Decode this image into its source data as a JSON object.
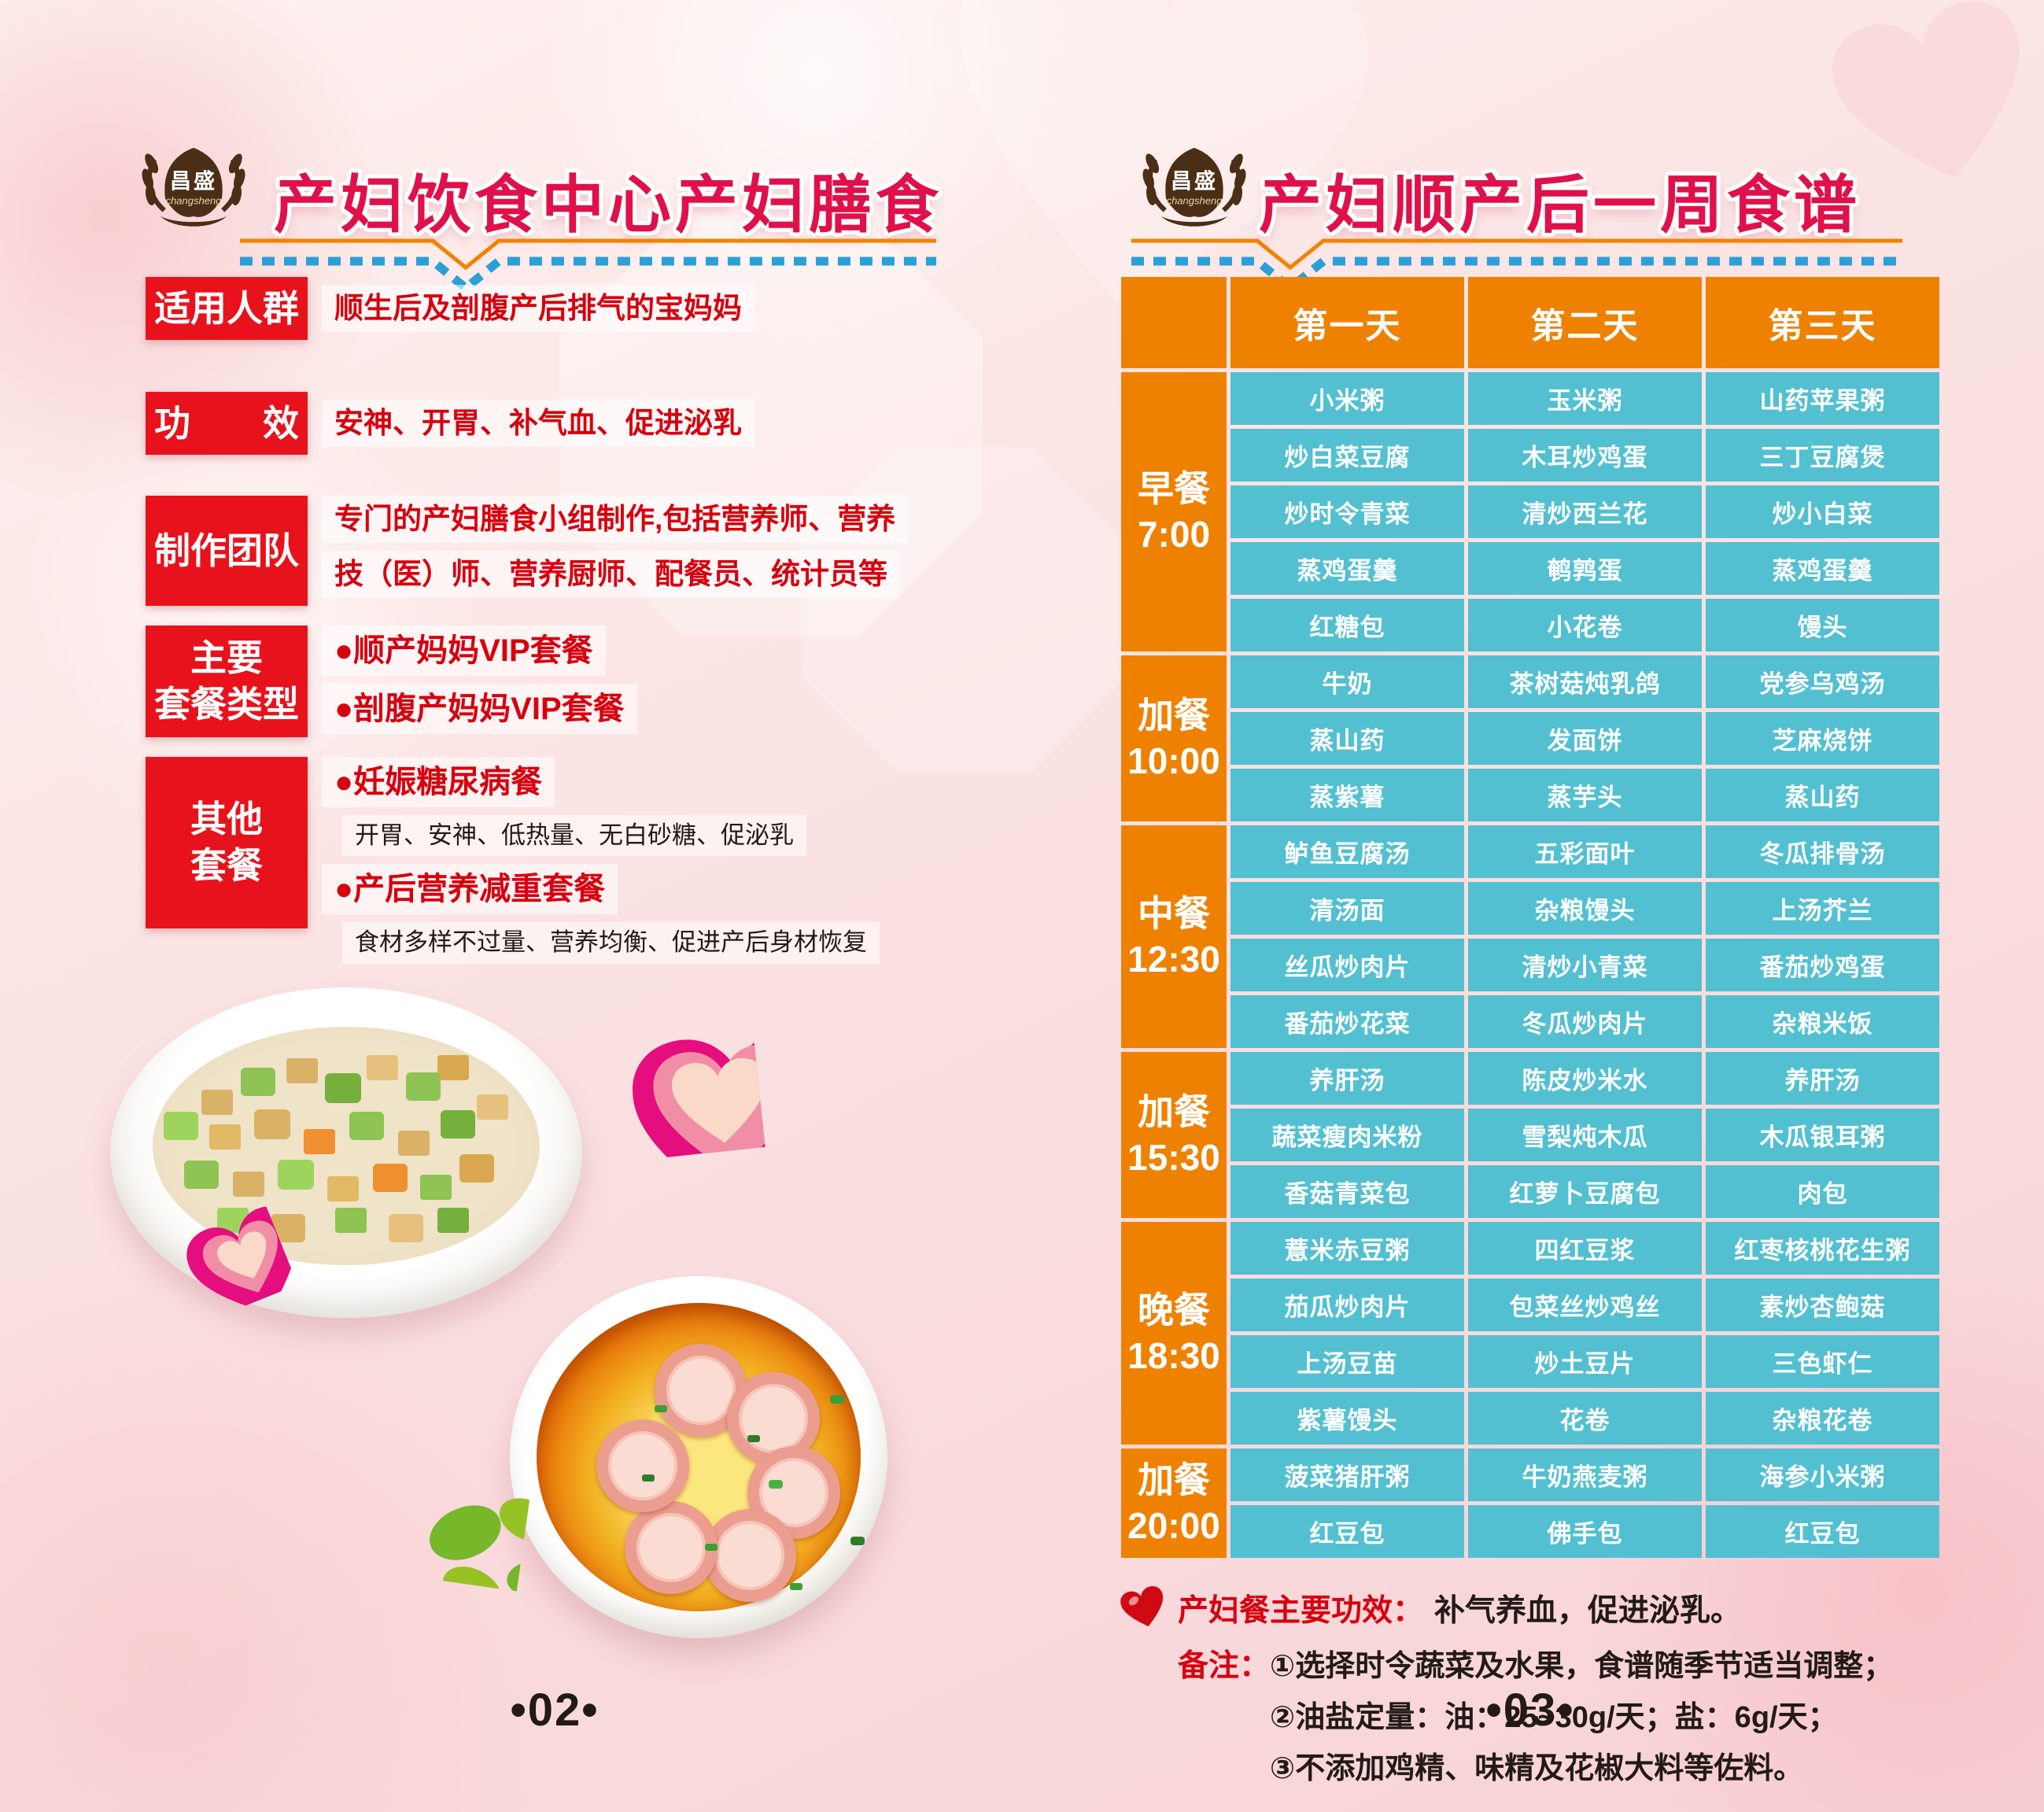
{
  "brand": {
    "logo_text": "昌盛",
    "logo_script": "changsheng"
  },
  "colors": {
    "title_pink": "#e0114a",
    "label_red": "#e8121c",
    "text_red": "#d7000f",
    "orange": "#ef8101",
    "teal": "#53c0d2",
    "dash_blue": "#2b9fd8",
    "text_black": "#221a17"
  },
  "left_page": {
    "title": "产妇饮食中心产妇膳食",
    "sections": [
      {
        "label": "适用人群",
        "lines": [
          {
            "text": "顺生后及剖腹产后排气的宝妈妈",
            "style": "red"
          }
        ]
      },
      {
        "label": "功　　效",
        "lines": [
          {
            "text": "安神、开胃、补气血、促进泌乳",
            "style": "red"
          }
        ]
      },
      {
        "label": "制作团队",
        "lines": [
          {
            "text": "专门的产妇膳食小组制作,包括营养师、营养",
            "style": "red"
          },
          {
            "text": "技（医）师、营养厨师、配餐员、统计员等",
            "style": "red"
          }
        ]
      },
      {
        "label": "主要\n套餐类型",
        "lines": [
          {
            "text": "●顺产妈妈VIP套餐",
            "style": "red-bullet"
          },
          {
            "text": "●剖腹产妈妈VIP套餐",
            "style": "red-bullet"
          }
        ]
      },
      {
        "label": "其他\n套餐",
        "lines": [
          {
            "text": "●妊娠糖尿病餐",
            "style": "red-bullet"
          },
          {
            "text": "开胃、安神、低热量、无白砂糖、促泌乳",
            "style": "black"
          },
          {
            "text": "●产后营养减重套餐",
            "style": "red-bullet"
          },
          {
            "text": "食材多样不过量、营养均衡、促进产后身材恢复",
            "style": "black"
          }
        ]
      }
    ],
    "page_number": "•02•"
  },
  "right_page": {
    "title": "产妇顺产后一周食谱",
    "table": {
      "day_headers": [
        "第一天",
        "第二天",
        "第三天"
      ],
      "groups": [
        {
          "meal": "早餐",
          "time": "7:00",
          "rows": [
            [
              "小米粥",
              "玉米粥",
              "山药苹果粥"
            ],
            [
              "炒白菜豆腐",
              "木耳炒鸡蛋",
              "三丁豆腐煲"
            ],
            [
              "炒时令青菜",
              "清炒西兰花",
              "炒小白菜"
            ],
            [
              "蒸鸡蛋羹",
              "鹌鹑蛋",
              "蒸鸡蛋羹"
            ],
            [
              "红糖包",
              "小花卷",
              "馒头"
            ]
          ]
        },
        {
          "meal": "加餐",
          "time": "10:00",
          "rows": [
            [
              "牛奶",
              "茶树菇炖乳鸽",
              "党参乌鸡汤"
            ],
            [
              "蒸山药",
              "发面饼",
              "芝麻烧饼"
            ],
            [
              "蒸紫薯",
              "蒸芋头",
              "蒸山药"
            ]
          ]
        },
        {
          "meal": "中餐",
          "time": "12:30",
          "rows": [
            [
              "鲈鱼豆腐汤",
              "五彩面叶",
              "冬瓜排骨汤"
            ],
            [
              "清汤面",
              "杂粮馒头",
              "上汤芥兰"
            ],
            [
              "丝瓜炒肉片",
              "清炒小青菜",
              "番茄炒鸡蛋"
            ],
            [
              "番茄炒花菜",
              "冬瓜炒肉片",
              "杂粮米饭"
            ]
          ]
        },
        {
          "meal": "加餐",
          "time": "15:30",
          "rows": [
            [
              "养肝汤",
              "陈皮炒米水",
              "养肝汤"
            ],
            [
              "蔬菜瘦肉米粉",
              "雪梨炖木瓜",
              "木瓜银耳粥"
            ],
            [
              "香菇青菜包",
              "红萝卜豆腐包",
              "肉包"
            ]
          ]
        },
        {
          "meal": "晚餐",
          "time": "18:30",
          "rows": [
            [
              "薏米赤豆粥",
              "四红豆浆",
              "红枣核桃花生粥"
            ],
            [
              "茄瓜炒肉片",
              "包菜丝炒鸡丝",
              "素炒杏鲍菇"
            ],
            [
              "上汤豆苗",
              "炒土豆片",
              "三色虾仁"
            ],
            [
              "紫薯馒头",
              "花卷",
              "杂粮花卷"
            ]
          ]
        },
        {
          "meal": "加餐",
          "time": "20:00",
          "rows": [
            [
              "菠菜猪肝粥",
              "牛奶燕麦粥",
              "海参小米粥"
            ],
            [
              "红豆包",
              "佛手包",
              "红豆包"
            ]
          ]
        }
      ]
    },
    "notes": {
      "effect_label": "产妇餐主要功效：",
      "effect_text": "补气养血，促进泌乳。",
      "remark_label": "备注：",
      "remarks": [
        "①选择时令蔬菜及水果，食谱随季节适当调整；",
        "②油盐定量：油：25~30g/天；盐：6g/天；",
        "③不添加鸡精、味精及花椒大料等佐料。"
      ]
    },
    "page_number": "•03•"
  }
}
